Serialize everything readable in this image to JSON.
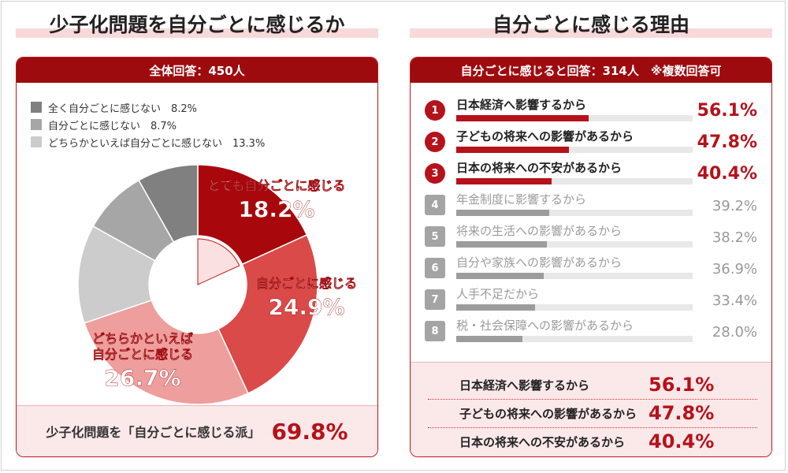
{
  "left": {
    "title": "少子化問題を自分ごとに感じるか",
    "header": "全体回答：450人",
    "legend": [
      {
        "label": "全く自分ごとに感じない　8.2%",
        "color": "#808080"
      },
      {
        "label": "自分ごとに感じない　8.7%",
        "color": "#a6a6a6"
      },
      {
        "label": "どちらかといえば自分ごとに感じない　13.3%",
        "color": "#cccccc"
      }
    ],
    "summary_label": "少子化問題を「自分ごとに感じる派」",
    "summary_value": "69.8%"
  },
  "right": {
    "title": "自分ごとに感じる理由",
    "header": "自分ごとに感じると回答：314人　※複数回答可",
    "summary": [
      {
        "label": "日本経済へ影響するから",
        "value": "56.1%"
      },
      {
        "label": "子どもの将来への影響があるから",
        "value": "47.8%"
      },
      {
        "label": "日本の将来への不安があるから",
        "value": "40.4%"
      }
    ]
  },
  "chart_data": [
    {
      "type": "pie",
      "labels": [
        "とても自分ごとに感じる",
        "自分ごとに感じる",
        "どちらかといえば自分ごとに感じる",
        "どちらかといえば自分ごとに感じない",
        "自分ごとに感じない",
        "全く自分ごとに感じない"
      ],
      "values": [
        18.2,
        24.9,
        26.7,
        13.3,
        8.7,
        8.2
      ],
      "value_labels": [
        "18.2%",
        "24.9%",
        "26.7%",
        "",
        "",
        ""
      ],
      "colors": [
        "#a8070c",
        "#da4a48",
        "#ee9e9d",
        "#cccccc",
        "#a6a6a6",
        "#808080"
      ],
      "label_lines": [
        [
          "とても自分ごとに感じる"
        ],
        [
          "自分ごとに感じる"
        ],
        [
          "どちらかといえば",
          "自分ごとに感じる"
        ],
        [],
        [],
        []
      ]
    },
    {
      "type": "bar",
      "categories": [
        "日本経済へ影響するから",
        "子どもの将来への影響があるから",
        "日本の将来への不安があるから",
        "年金制度に影響するから",
        "将来の生活への影響があるから",
        "自分や家族への影響があるから",
        "人手不足だから",
        "税・社会保障への影響があるから"
      ],
      "values": [
        56.1,
        47.8,
        40.4,
        39.2,
        38.2,
        36.9,
        33.4,
        28.0
      ],
      "value_labels": [
        "56.1%",
        "47.8%",
        "40.4%",
        "39.2%",
        "38.2%",
        "36.9%",
        "33.4%",
        "28.0%"
      ],
      "ranks": [
        "1",
        "2",
        "3",
        "4",
        "5",
        "6",
        "7",
        "8"
      ],
      "xlim": [
        0,
        100
      ],
      "colors": {
        "top": "#b5121b",
        "rest": "#9c9c9c",
        "badge_top": "#b5121b",
        "badge_rest": "#a4a4a4"
      }
    }
  ]
}
